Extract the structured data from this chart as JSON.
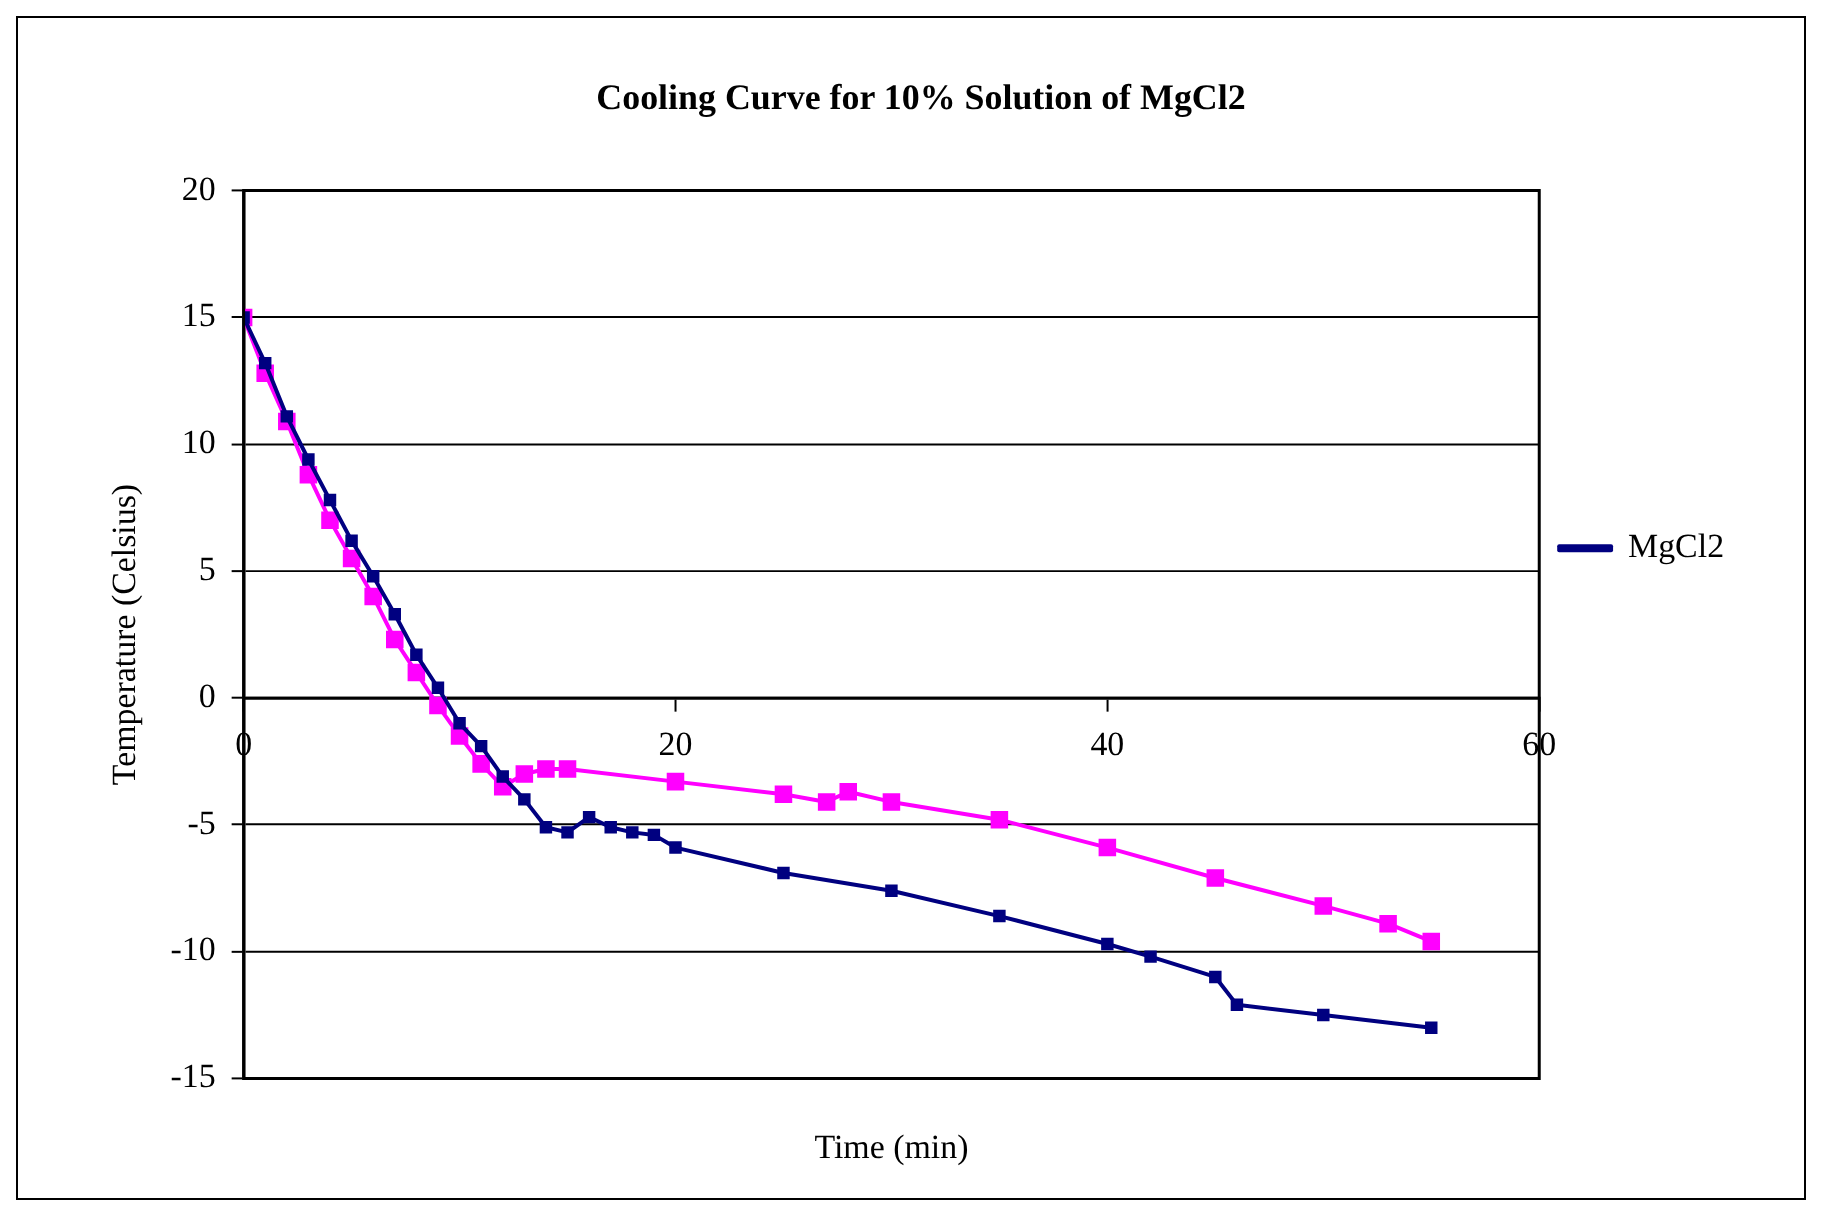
{
  "chart_data": {
    "type": "line",
    "title": "Cooling Curve for 10% Solution of MgCl2",
    "xlabel": "Time (min)",
    "ylabel": "Temperature (Celsius)",
    "xlim": [
      0,
      60
    ],
    "xticks": [
      0,
      20,
      40,
      60
    ],
    "ylim": [
      -15,
      20
    ],
    "yticks": [
      -15,
      -10,
      -5,
      0,
      5,
      10,
      15,
      20
    ],
    "grid": "y",
    "legend": "right",
    "marker": "square",
    "line_style": "solid",
    "series": [
      {
        "name": "MgCl2",
        "color": "#000080",
        "x": [
          0,
          1,
          2,
          3,
          4,
          5,
          6,
          7,
          8,
          9,
          10,
          11,
          12,
          13,
          14,
          15,
          16,
          17,
          18,
          19,
          20,
          25,
          30,
          35,
          40,
          42,
          45,
          46,
          50,
          55
        ],
        "values": [
          15,
          13.2,
          11.1,
          9.4,
          7.8,
          6.2,
          4.8,
          3.3,
          1.7,
          0.4,
          -1.0,
          -1.9,
          -3.1,
          -4.0,
          -5.1,
          -5.3,
          -4.7,
          -5.1,
          -5.3,
          -5.4,
          -5.9,
          -6.9,
          -7.6,
          -8.6,
          -9.7,
          -10.2,
          -11.0,
          -12.1,
          -12.5,
          -13.0
        ]
      },
      {
        "color": "#ff00ff",
        "x": [
          0,
          1,
          2,
          3,
          4,
          5,
          6,
          7,
          8,
          9,
          10,
          11,
          12,
          13,
          14,
          15,
          20,
          25,
          27,
          28,
          30,
          35,
          40,
          45,
          50,
          53,
          55
        ],
        "values": [
          15,
          12.8,
          10.9,
          8.8,
          7.0,
          5.5,
          4.0,
          2.3,
          1.0,
          -0.3,
          -1.5,
          -2.6,
          -3.5,
          -3.0,
          -2.8,
          -2.8,
          -3.3,
          -3.8,
          -4.1,
          -3.7,
          -4.1,
          -4.8,
          -5.9,
          -7.1,
          -8.2,
          -8.9,
          -9.6
        ]
      }
    ]
  }
}
